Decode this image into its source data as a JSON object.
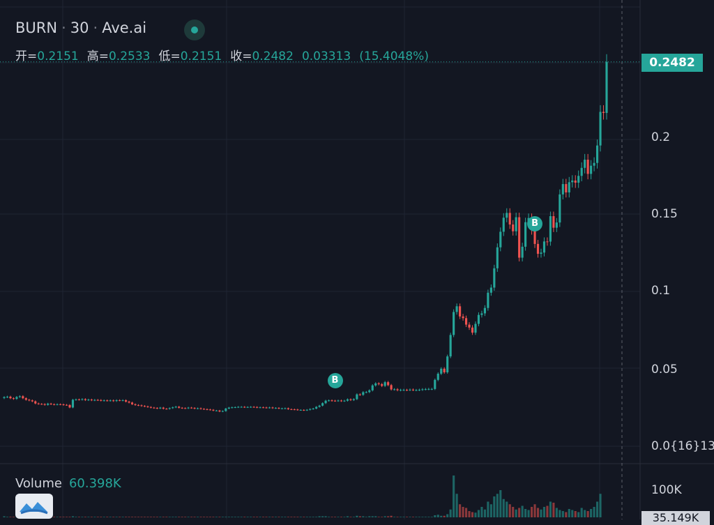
{
  "header": {
    "symbol": "BURN",
    "interval": "30",
    "source": "Ave.ai",
    "sep": "·"
  },
  "ohlc": {
    "open_label": "开=",
    "open": "0.2151",
    "high_label": "高=",
    "high": "0.2533",
    "low_label": "低=",
    "low": "0.2151",
    "close_label": "收=",
    "close": "0.2482",
    "change": "0.03313",
    "change_pct": "(15.4048%)"
  },
  "volume": {
    "label": "Volume",
    "value": "60.398K",
    "axis_tick": "100K",
    "current_tag": "35.149K"
  },
  "price_axis": {
    "current_price": "0.2482",
    "ticks": [
      "0.2",
      "0.15",
      "0.1",
      "0.05",
      "0.0{16}13"
    ]
  },
  "markers": [
    {
      "label": "B",
      "candle_index": 106
    },
    {
      "label": "B",
      "candle_index": 170
    }
  ],
  "colors": {
    "background": "#131722",
    "up": "#26a69a",
    "down": "#ef5350",
    "grid": "#1f2433",
    "text": "#d1d4dc"
  },
  "chart_data": {
    "type": "candlestick",
    "series_name": "BURN · 30 · Ave.ai",
    "ylim": [
      0.0,
      0.26
    ],
    "price_ticks": [
      0.05,
      0.1,
      0.15,
      0.2
    ],
    "close_series": [
      0.0309,
      0.0312,
      0.0302,
      0.0298,
      0.031,
      0.0315,
      0.0302,
      0.0292,
      0.0288,
      0.0282,
      0.0268,
      0.0265,
      0.0264,
      0.0259,
      0.0267,
      0.0263,
      0.0261,
      0.0263,
      0.0262,
      0.0259,
      0.0258,
      0.0242,
      0.0292,
      0.0294,
      0.0293,
      0.0296,
      0.029,
      0.0293,
      0.0289,
      0.0291,
      0.029,
      0.0287,
      0.0288,
      0.0286,
      0.0288,
      0.0284,
      0.0289,
      0.0288,
      0.0289,
      0.028,
      0.0274,
      0.0263,
      0.0258,
      0.0256,
      0.0252,
      0.0249,
      0.0245,
      0.0241,
      0.0239,
      0.0236,
      0.0241,
      0.0234,
      0.0233,
      0.0238,
      0.0243,
      0.0247,
      0.024,
      0.0238,
      0.0237,
      0.0241,
      0.0239,
      0.0235,
      0.0237,
      0.0233,
      0.0231,
      0.0229,
      0.0227,
      0.0222,
      0.0222,
      0.0216,
      0.0219,
      0.0235,
      0.0241,
      0.0243,
      0.0244,
      0.0246,
      0.0246,
      0.0244,
      0.0245,
      0.0246,
      0.0245,
      0.0242,
      0.0243,
      0.0242,
      0.024,
      0.0242,
      0.0238,
      0.0239,
      0.0236,
      0.0236,
      0.0237,
      0.0231,
      0.023,
      0.0229,
      0.0226,
      0.0226,
      0.0224,
      0.0227,
      0.0232,
      0.0235,
      0.0246,
      0.0254,
      0.027,
      0.0286,
      0.0288,
      0.0286,
      0.0285,
      0.0287,
      0.0284,
      0.0286,
      0.0295,
      0.029,
      0.0296,
      0.0327,
      0.0324,
      0.0341,
      0.0342,
      0.0353,
      0.0385,
      0.0398,
      0.0393,
      0.0382,
      0.0406,
      0.0387,
      0.0359,
      0.036,
      0.0354,
      0.0356,
      0.0356,
      0.0355,
      0.0358,
      0.0355,
      0.0355,
      0.0357,
      0.036,
      0.0361,
      0.0362,
      0.0362,
      0.0421,
      0.0461,
      0.0493,
      0.047,
      0.0573,
      0.0712,
      0.0861,
      0.0898,
      0.0832,
      0.0821,
      0.0779,
      0.076,
      0.0727,
      0.0784,
      0.0842,
      0.0852,
      0.0887,
      0.0986,
      0.1019,
      0.1144,
      0.128,
      0.1381,
      0.1472,
      0.1503,
      0.1428,
      0.1384,
      0.1475,
      0.1213,
      0.1284,
      0.1443,
      0.147,
      0.139,
      0.1302,
      0.1238,
      0.1246,
      0.1318,
      0.1317,
      0.1482,
      0.1407,
      0.1441,
      0.1623,
      0.169,
      0.1636,
      0.1702,
      0.1713,
      0.1699,
      0.1743,
      0.1795,
      0.1848,
      0.1756,
      0.1809,
      0.1827,
      0.194,
      0.2158,
      0.2151,
      0.2482
    ],
    "volume_series": [
      2,
      1,
      1,
      1,
      1,
      1,
      1,
      1,
      1,
      1,
      1,
      1,
      1,
      1,
      1,
      1,
      1,
      1,
      1,
      1,
      1,
      1,
      2,
      1,
      1,
      1,
      1,
      1,
      1,
      1,
      1,
      1,
      1,
      1,
      1,
      1,
      1,
      1,
      1,
      1,
      1,
      1,
      1,
      1,
      1,
      1,
      1,
      1,
      1,
      1,
      1,
      1,
      1,
      1,
      1,
      1,
      1,
      1,
      1,
      1,
      1,
      1,
      1,
      1,
      1,
      1,
      1,
      1,
      1,
      1,
      1,
      1,
      1,
      1,
      1,
      1,
      1,
      1,
      1,
      1,
      1,
      1,
      1,
      1,
      1,
      1,
      1,
      1,
      1,
      1,
      1,
      1,
      1,
      1,
      1,
      1,
      1,
      1,
      1,
      1,
      1,
      2,
      2,
      2,
      1,
      1,
      1,
      1,
      1,
      1,
      2,
      1,
      1,
      3,
      2,
      2,
      1,
      2,
      2,
      2,
      1,
      1,
      2,
      2,
      3,
      1,
      1,
      1,
      1,
      1,
      1,
      1,
      1,
      1,
      1,
      1,
      1,
      1,
      4,
      5,
      3,
      3,
      6,
      15,
      80,
      45,
      25,
      20,
      18,
      12,
      10,
      9,
      14,
      20,
      15,
      30,
      25,
      40,
      45,
      52,
      35,
      30,
      25,
      20,
      15,
      18,
      22,
      16,
      14,
      20,
      25,
      18,
      15,
      20,
      22,
      30,
      28,
      18,
      14,
      12,
      10,
      16,
      14,
      12,
      10,
      18,
      14,
      12,
      16,
      20,
      30,
      45
    ]
  }
}
